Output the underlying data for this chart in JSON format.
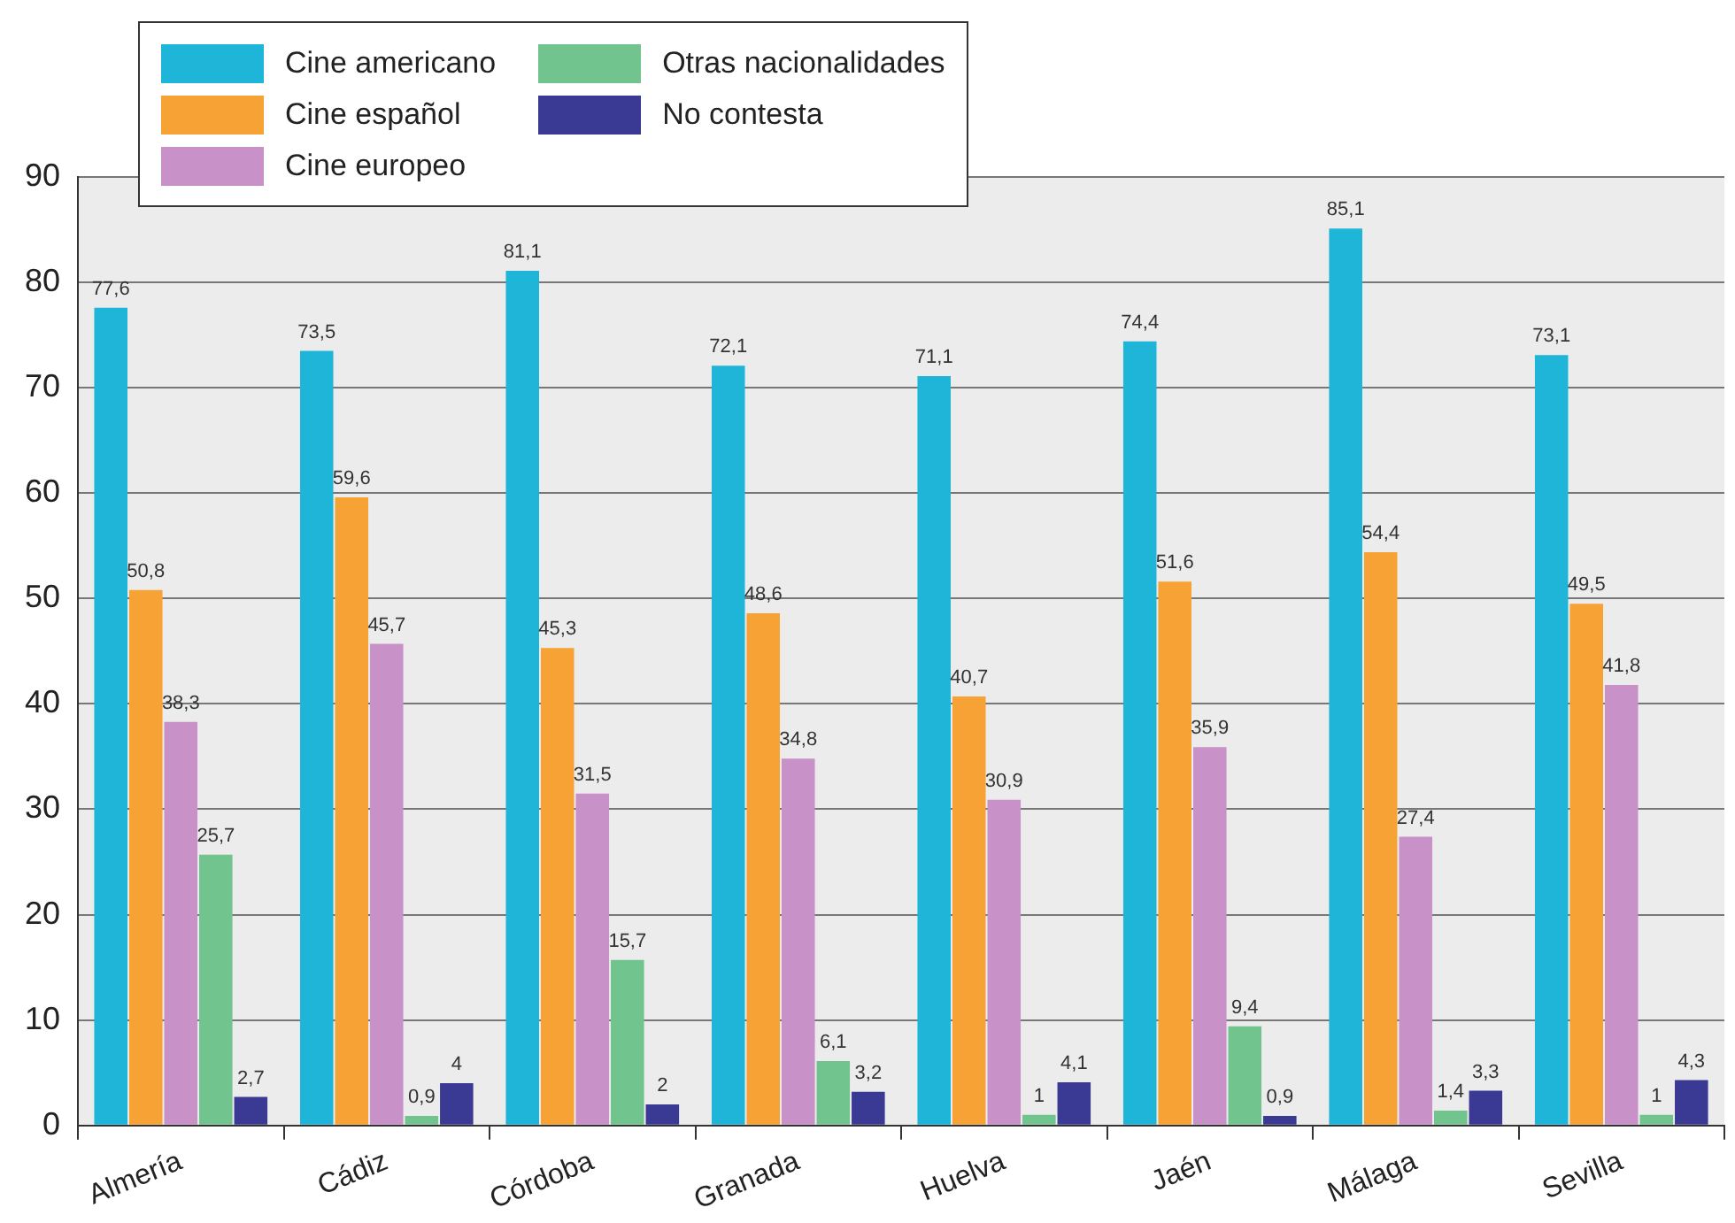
{
  "chart_data": {
    "type": "bar",
    "categories": [
      "Almería",
      "Cádiz",
      "Córdoba",
      "Granada",
      "Huelva",
      "Jaén",
      "Málaga",
      "Sevilla"
    ],
    "series": [
      {
        "name": "Cine americano",
        "color": "#1fb5d9",
        "values": [
          77.6,
          73.5,
          81.1,
          72.1,
          71.1,
          74.4,
          85.1,
          73.1
        ],
        "value_labels": [
          "77,6",
          "73,5",
          "81,1",
          "72,1",
          "71,1",
          "74,4",
          "85,1",
          "73,1"
        ]
      },
      {
        "name": "Cine español",
        "color": "#f7a234",
        "values": [
          50.8,
          59.6,
          45.3,
          48.6,
          40.7,
          51.6,
          54.4,
          49.5
        ],
        "value_labels": [
          "50,8",
          "59,6",
          "45,3",
          "48,6",
          "40,7",
          "51,6",
          "54,4",
          "49,5"
        ]
      },
      {
        "name": "Cine europeo",
        "color": "#c891c8",
        "values": [
          38.3,
          45.7,
          31.5,
          34.8,
          30.9,
          35.9,
          27.4,
          41.8
        ],
        "value_labels": [
          "38,3",
          "45,7",
          "31,5",
          "34,8",
          "30,9",
          "35,9",
          "27,4",
          "41,8"
        ]
      },
      {
        "name": "Otras nacionalidades",
        "color": "#72c48e",
        "values": [
          25.7,
          0.9,
          15.7,
          6.1,
          1,
          9.4,
          1.4,
          1
        ],
        "value_labels": [
          "25,7",
          "0,9",
          "15,7",
          "6,1",
          "1",
          "9,4",
          "1,4",
          "1"
        ]
      },
      {
        "name": "No contesta",
        "color": "#3a3a94",
        "values": [
          2.7,
          4,
          2,
          3.2,
          4.1,
          0.9,
          3.3,
          4.3
        ],
        "value_labels": [
          "2,7",
          "4",
          "2",
          "3,2",
          "4,1",
          "0,9",
          "3,3",
          "4,3"
        ]
      }
    ],
    "ylim": [
      0,
      90
    ],
    "yticks": [
      0,
      10,
      20,
      30,
      40,
      50,
      60,
      70,
      80,
      90
    ],
    "grid": "y",
    "legend": "top left"
  }
}
